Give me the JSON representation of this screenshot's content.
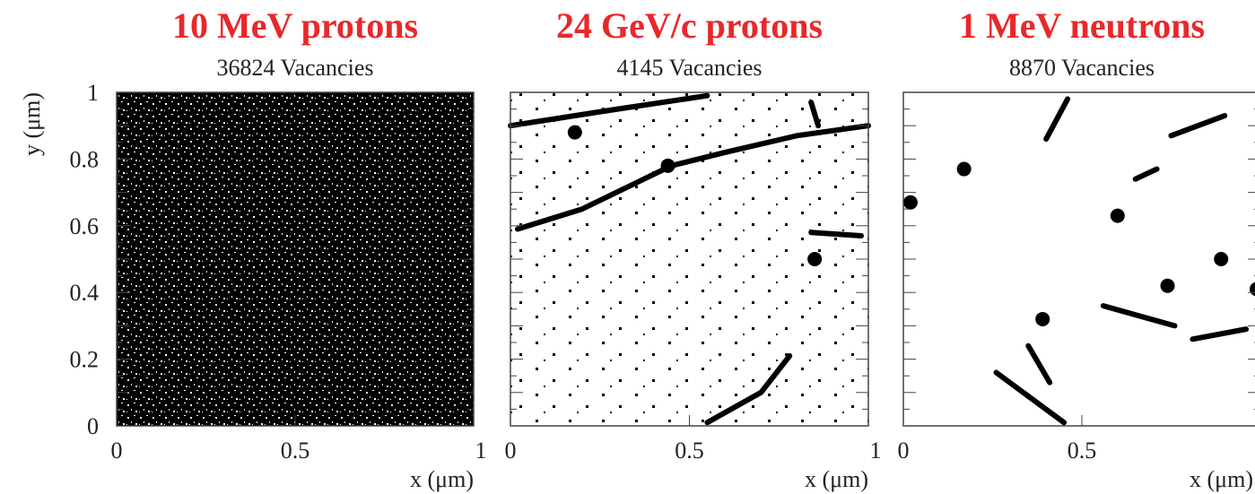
{
  "chart_data": [
    {
      "type": "scatter",
      "title": "10 MeV protons",
      "subtitle": "36824  Vacancies",
      "xlabel": "x (μm)",
      "ylabel": "y (μm)",
      "xlim": [
        0,
        1
      ],
      "ylim": [
        0,
        1
      ],
      "xticks": [
        0,
        0.5,
        1
      ],
      "yticks": [
        0,
        0.2,
        0.4,
        0.6,
        0.8,
        1
      ],
      "fill": "dense",
      "tracks": [],
      "clusters": {
        "x": [],
        "y": []
      }
    },
    {
      "type": "scatter",
      "title": "24 GeV/c protons",
      "subtitle": "4145 Vacancies",
      "xlabel": "x (μm)",
      "xlim": [
        0,
        1
      ],
      "ylim": [
        0,
        1
      ],
      "xticks": [
        0,
        0.5,
        1
      ],
      "fill": "sparse",
      "tracks": [
        {
          "x": [
            0.02,
            0.2,
            0.45,
            0.6,
            0.8,
            1.0
          ],
          "y": [
            0.59,
            0.65,
            0.78,
            0.82,
            0.87,
            0.9
          ]
        },
        {
          "x": [
            0.0,
            0.3,
            0.55
          ],
          "y": [
            0.9,
            0.95,
            0.99
          ]
        },
        {
          "x": [
            0.55,
            0.7,
            0.78
          ],
          "y": [
            0.01,
            0.1,
            0.21
          ]
        },
        {
          "x": [
            0.84,
            0.98
          ],
          "y": [
            0.58,
            0.57
          ]
        },
        {
          "x": [
            0.84,
            0.86
          ],
          "y": [
            0.97,
            0.9
          ]
        }
      ],
      "clusters": {
        "x": [
          0.85,
          0.18,
          0.44
        ],
        "y": [
          0.5,
          0.88,
          0.78
        ]
      }
    },
    {
      "type": "scatter",
      "title": "1 MeV neutrons",
      "subtitle": "8870 Vacancies",
      "xlabel": "x (μm)",
      "xlim": [
        0,
        1
      ],
      "ylim": [
        0,
        1
      ],
      "xticks": [
        0,
        0.5
      ],
      "fill": "none",
      "tracks": [
        {
          "x": [
            0.4,
            0.46
          ],
          "y": [
            0.86,
            0.98
          ]
        },
        {
          "x": [
            0.75,
            0.9
          ],
          "y": [
            0.87,
            0.93
          ]
        },
        {
          "x": [
            0.26,
            0.45
          ],
          "y": [
            0.16,
            0.01
          ]
        },
        {
          "x": [
            0.56,
            0.76
          ],
          "y": [
            0.36,
            0.3
          ]
        },
        {
          "x": [
            0.81,
            0.96
          ],
          "y": [
            0.26,
            0.29
          ]
        },
        {
          "x": [
            0.35,
            0.41
          ],
          "y": [
            0.24,
            0.13
          ]
        },
        {
          "x": [
            0.65,
            0.71
          ],
          "y": [
            0.74,
            0.77
          ]
        }
      ],
      "clusters": {
        "x": [
          0.74,
          0.89,
          0.6,
          0.39,
          0.17,
          0.02,
          0.99
        ],
        "y": [
          0.42,
          0.5,
          0.63,
          0.32,
          0.77,
          0.67,
          0.41
        ]
      }
    }
  ]
}
